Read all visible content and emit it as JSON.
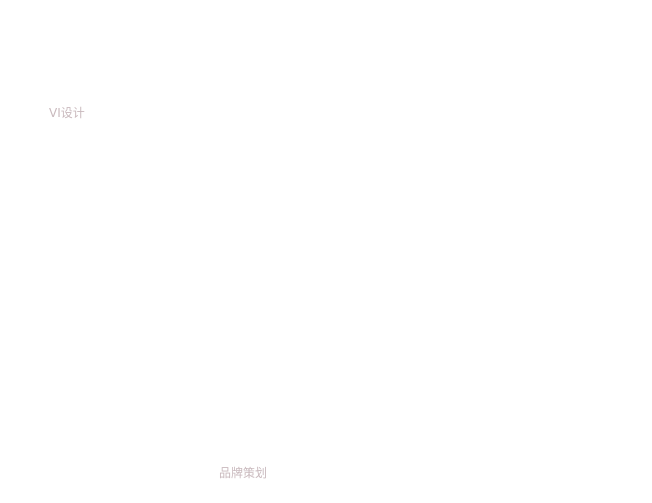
{
  "labels": {
    "vi_design": "VI设计",
    "brand_planning": "品牌策划"
  },
  "colors": {
    "label_text": "#c9b9bd",
    "background": "#ffffff"
  }
}
